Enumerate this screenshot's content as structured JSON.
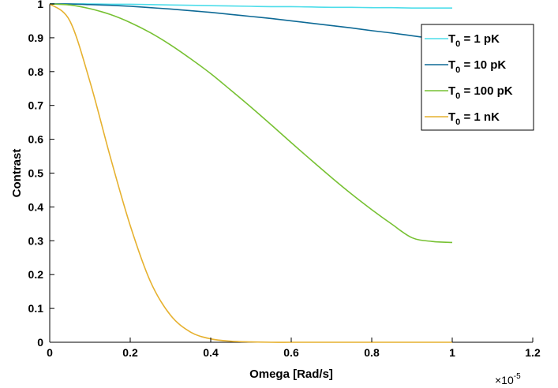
{
  "chart_data": {
    "type": "line",
    "xlabel": "Omega [Rad/s]",
    "ylabel": "Contrast",
    "xlim": [
      0,
      1.2
    ],
    "ylim": [
      0,
      1
    ],
    "x_multiplier": "×10",
    "x_multiplier_exponent": "-5",
    "x_ticks": [
      "0",
      "0.2",
      "0.4",
      "0.6",
      "0.8",
      "1",
      "1.2"
    ],
    "y_ticks": [
      "0",
      "0.1",
      "0.2",
      "0.3",
      "0.4",
      "0.5",
      "0.6",
      "0.7",
      "0.8",
      "0.9",
      "1"
    ],
    "grid": false,
    "legend_position": "top-right",
    "x": [
      0,
      0.05,
      0.1,
      0.15,
      0.2,
      0.25,
      0.3,
      0.35,
      0.4,
      0.45,
      0.5,
      0.55,
      0.6,
      0.65,
      0.7,
      0.75,
      0.8,
      0.85,
      0.9,
      0.95,
      1.0
    ],
    "series": [
      {
        "name_main": "T",
        "name_sub": "0",
        "name_rest": " = 1 pK",
        "color": "#4DDDEA",
        "values": [
          1.0,
          1.0,
          1.0,
          0.999,
          0.999,
          0.998,
          0.997,
          0.996,
          0.995,
          0.994,
          0.993,
          0.992,
          0.992,
          0.991,
          0.99,
          0.99,
          0.989,
          0.989,
          0.988,
          0.988,
          0.988
        ]
      },
      {
        "name_main": "T",
        "name_sub": "0",
        "name_rest": " = 10 pK",
        "color": "#0E6A96",
        "values": [
          1.0,
          1.0,
          0.998,
          0.996,
          0.993,
          0.989,
          0.985,
          0.98,
          0.975,
          0.969,
          0.963,
          0.957,
          0.95,
          0.943,
          0.936,
          0.929,
          0.921,
          0.914,
          0.906,
          0.898,
          0.891
        ]
      },
      {
        "name_main": "T",
        "name_sub": "0",
        "name_rest": " = 100 pK",
        "color": "#77C133",
        "values": [
          1.0,
          0.997,
          0.986,
          0.969,
          0.945,
          0.915,
          0.879,
          0.838,
          0.794,
          0.745,
          0.695,
          0.643,
          0.59,
          0.538,
          0.487,
          0.438,
          0.392,
          0.349,
          0.309,
          0.298,
          0.295
        ]
      },
      {
        "name_main": "T",
        "name_sub": "0",
        "name_rest": " = 1 nK",
        "color": "#E6B12F",
        "values": [
          1.0,
          0.95,
          0.77,
          0.55,
          0.345,
          0.18,
          0.08,
          0.03,
          0.01,
          0.003,
          0.001,
          0.0,
          0.0,
          0.0,
          0.0,
          0.0,
          0.0,
          0.0,
          0.0,
          0.0,
          0.0
        ]
      }
    ]
  }
}
